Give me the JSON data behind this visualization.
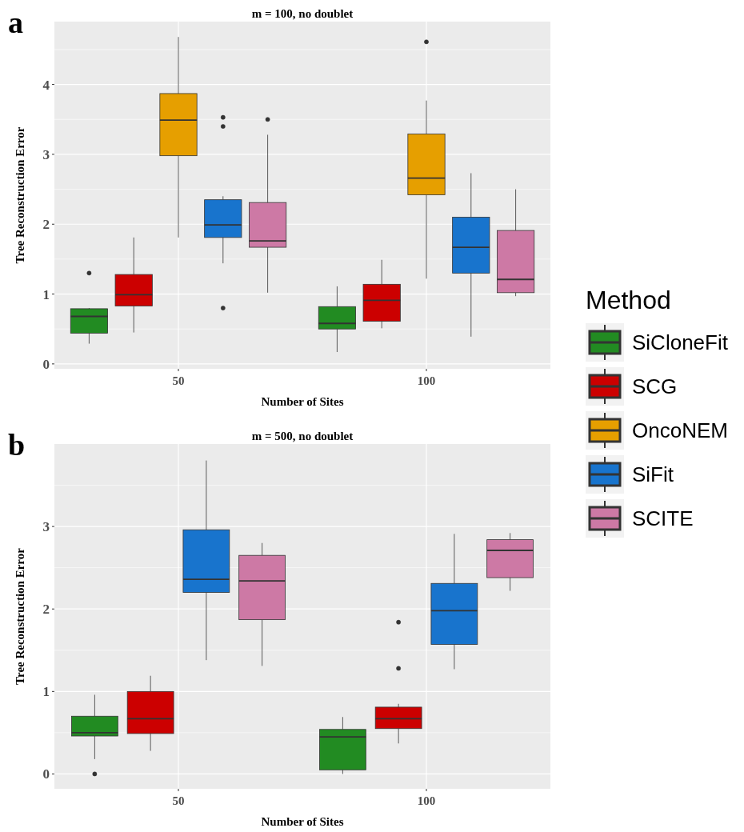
{
  "chart_data": [
    {
      "type": "box",
      "title": "m = 100, no doublet",
      "xlabel": "Number of Sites",
      "ylabel": "Tree Reconstruction Error",
      "legend_title": "Method",
      "legend": "right",
      "grid": true,
      "annotations": [
        "a"
      ],
      "categories": [
        "50",
        "100"
      ],
      "ylim": [
        -0.07,
        4.9
      ],
      "yticks": [
        0,
        1,
        2,
        3,
        4
      ],
      "series": [
        {
          "name": "SiCloneFit",
          "color": "#228b22",
          "boxes": [
            {
              "low": 0.29,
              "q1": 0.44,
              "median": 0.68,
              "q3": 0.79,
              "high": 0.8,
              "outliers": [
                1.3
              ]
            },
            {
              "low": 0.17,
              "q1": 0.5,
              "median": 0.58,
              "q3": 0.82,
              "high": 1.11
            }
          ]
        },
        {
          "name": "SCG",
          "color": "#cc0000",
          "boxes": [
            {
              "low": 0.45,
              "q1": 0.83,
              "median": 0.99,
              "q3": 1.28,
              "high": 1.81
            },
            {
              "low": 0.51,
              "q1": 0.61,
              "median": 0.91,
              "q3": 1.14,
              "high": 1.49
            }
          ]
        },
        {
          "name": "OncoNEM",
          "color": "#e69f00",
          "boxes": [
            {
              "low": 1.81,
              "q1": 2.98,
              "median": 3.49,
              "q3": 3.87,
              "high": 4.68
            },
            {
              "low": 1.22,
              "q1": 2.42,
              "median": 2.66,
              "q3": 3.29,
              "high": 3.77,
              "outliers": [
                4.61
              ]
            }
          ]
        },
        {
          "name": "SiFit",
          "color": "#1874cd",
          "boxes": [
            {
              "low": 1.44,
              "q1": 1.81,
              "median": 1.99,
              "q3": 2.35,
              "high": 2.4,
              "outliers": [
                3.53,
                3.4,
                0.8
              ]
            },
            {
              "low": 0.39,
              "q1": 1.3,
              "median": 1.67,
              "q3": 2.1,
              "high": 2.73
            }
          ]
        },
        {
          "name": "SCITE",
          "color": "#cd79a5",
          "boxes": [
            {
              "low": 1.02,
              "q1": 1.67,
              "median": 1.76,
              "q3": 2.31,
              "high": 3.28,
              "outliers": [
                3.5
              ]
            },
            {
              "low": 0.97,
              "q1": 1.02,
              "median": 1.21,
              "q3": 1.91,
              "high": 2.5
            }
          ]
        }
      ]
    },
    {
      "type": "box",
      "title": "m = 500, no doublet",
      "xlabel": "Number of Sites",
      "ylabel": "Tree Reconstruction Error",
      "grid": true,
      "annotations": [
        "b"
      ],
      "categories": [
        "50",
        "100"
      ],
      "ylim": [
        -0.18,
        4.0
      ],
      "yticks": [
        0,
        1,
        2,
        3
      ],
      "series": [
        {
          "color": "#228b22",
          "boxes": [
            {
              "low": 0.18,
              "q1": 0.46,
              "median": 0.5,
              "q3": 0.7,
              "high": 0.96,
              "outliers": [
                0.0
              ]
            },
            {
              "low": 0.0,
              "q1": 0.05,
              "median": 0.45,
              "q3": 0.54,
              "high": 0.69
            }
          ]
        },
        {
          "color": "#cc0000",
          "boxes": [
            {
              "low": 0.28,
              "q1": 0.49,
              "median": 0.67,
              "q3": 1.0,
              "high": 1.19
            },
            {
              "low": 0.37,
              "q1": 0.55,
              "median": 0.67,
              "q3": 0.81,
              "high": 0.85,
              "outliers": [
                1.28,
                1.84
              ]
            }
          ]
        },
        {
          "color": "#1874cd",
          "boxes": [
            {
              "low": 1.38,
              "q1": 2.2,
              "median": 2.36,
              "q3": 2.96,
              "high": 3.8
            },
            {
              "low": 1.27,
              "q1": 1.57,
              "median": 1.98,
              "q3": 2.31,
              "high": 2.91
            }
          ]
        },
        {
          "color": "#cd79a5",
          "boxes": [
            {
              "low": 1.31,
              "q1": 1.87,
              "median": 2.34,
              "q3": 2.65,
              "high": 2.8
            },
            {
              "low": 2.22,
              "q1": 2.38,
              "median": 2.71,
              "q3": 2.84,
              "high": 2.92
            }
          ]
        }
      ]
    }
  ]
}
